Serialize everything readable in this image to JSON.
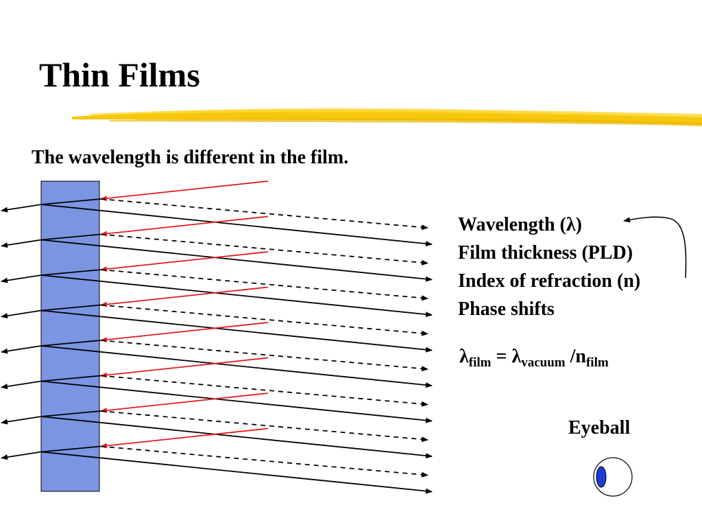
{
  "slide": {
    "title": "Thin Films",
    "subtitle": "The wavelength is different in the film."
  },
  "factors": [
    {
      "text": "Wavelength (λ)"
    },
    {
      "text": "Film thickness (PLD)"
    },
    {
      "text": "Index of refraction (n)"
    },
    {
      "text": "Phase shifts"
    }
  ],
  "formula": {
    "lhs_symbol": "λ",
    "lhs_sub": "film",
    "equals": " = ",
    "rhs_symbol": "λ",
    "rhs_sub": "vacuum",
    "divide": " /n",
    "divisor_sub": "film"
  },
  "eyeball": {
    "label": "Eyeball"
  },
  "colors": {
    "film": "#7b95e3",
    "incident_ray": "#e31b1b",
    "highlight": "#f5c400"
  },
  "diagram": {
    "ray_count": 8
  }
}
